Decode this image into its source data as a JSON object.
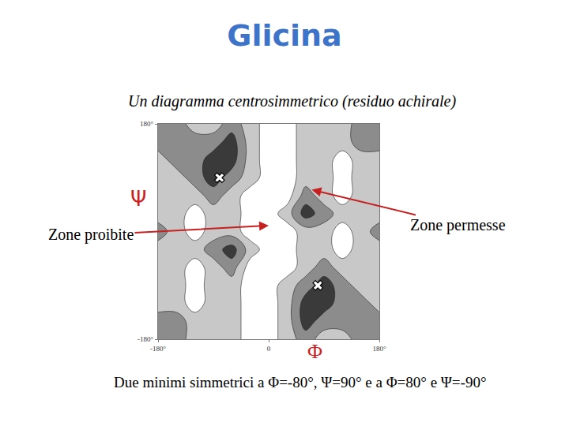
{
  "chart_data": {
    "type": "contour",
    "title": "Glicina",
    "subtitle": "Un diagramma centrosimmetrico (residuo achirale)",
    "x_label": "Φ",
    "y_label": "Ψ",
    "caption": "Due minimi simmetrici a Φ=-80°, Ψ=90° e a Φ=80° e Ψ=-90°",
    "x": [
      -180,
      -150,
      -120,
      -90,
      -60,
      -30,
      0,
      30,
      60,
      90,
      120,
      150,
      180
    ],
    "y": [
      -180,
      -150,
      -120,
      -90,
      -60,
      -30,
      0,
      30,
      60,
      90,
      120,
      150,
      180
    ],
    "z": [
      [
        2,
        2,
        1,
        1,
        1,
        0,
        0,
        1,
        2,
        1,
        1,
        2,
        2
      ],
      [
        2,
        2,
        1,
        1,
        1,
        0,
        0,
        1,
        3,
        2,
        2,
        2,
        2
      ],
      [
        1,
        1,
        0,
        1,
        1,
        0,
        0,
        1,
        3,
        3,
        2,
        2,
        1
      ],
      [
        1,
        1,
        0,
        1,
        1,
        0,
        0,
        1,
        2,
        3,
        2,
        1,
        1
      ],
      [
        1,
        1,
        0,
        1,
        2,
        0,
        0,
        0,
        1,
        2,
        1,
        1,
        1
      ],
      [
        1,
        1,
        1,
        2,
        3,
        1,
        0,
        0,
        1,
        1,
        0,
        1,
        1
      ],
      [
        2,
        1,
        0,
        1,
        1,
        0,
        0,
        0,
        1,
        1,
        0,
        1,
        2
      ],
      [
        1,
        1,
        0,
        1,
        1,
        0,
        0,
        1,
        3,
        2,
        1,
        1,
        1
      ],
      [
        1,
        1,
        1,
        2,
        1,
        0,
        0,
        0,
        2,
        1,
        0,
        1,
        1
      ],
      [
        1,
        1,
        2,
        3,
        2,
        1,
        0,
        0,
        1,
        1,
        0,
        1,
        1
      ],
      [
        1,
        2,
        2,
        3,
        3,
        1,
        0,
        0,
        1,
        1,
        0,
        1,
        1
      ],
      [
        2,
        2,
        2,
        2,
        3,
        1,
        0,
        0,
        1,
        1,
        1,
        2,
        2
      ],
      [
        2,
        2,
        1,
        1,
        2,
        1,
        0,
        0,
        1,
        1,
        1,
        2,
        2
      ]
    ],
    "zlim": [
      0,
      3
    ],
    "colors": [
      "#ffffff",
      "#c8c8c8",
      "#8c8c8c",
      "#3a3a3a"
    ],
    "xlim": [
      -180,
      180
    ],
    "ylim": [
      -180,
      180
    ],
    "xticks": [
      {
        "value": -180,
        "label": "-180°"
      },
      0,
      {
        "value": 180,
        "label": "180°"
      }
    ],
    "yticks": [
      {
        "value": -180,
        "label": "-180°"
      },
      {
        "value": 180,
        "label": "180°"
      }
    ],
    "grid": false,
    "minima": {
      "x": [
        -80,
        80
      ],
      "y": [
        90,
        -90
      ],
      "marker": "x"
    },
    "annotations": [
      {
        "text": "Zone proibite",
        "x": 0,
        "y": 10
      },
      {
        "text": "Zone permesse",
        "x": 70,
        "y": 70
      }
    ]
  }
}
